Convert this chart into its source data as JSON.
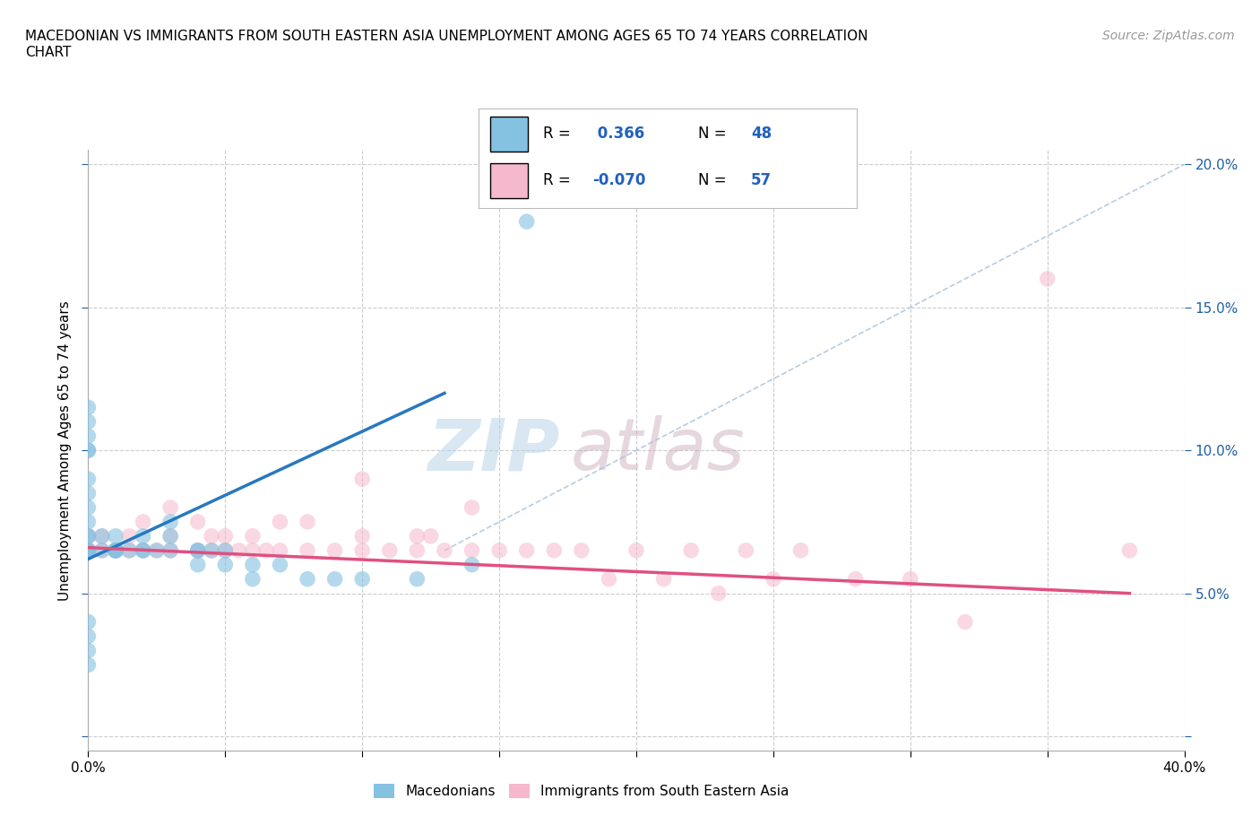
{
  "title_line1": "MACEDONIAN VS IMMIGRANTS FROM SOUTH EASTERN ASIA UNEMPLOYMENT AMONG AGES 65 TO 74 YEARS CORRELATION",
  "title_line2": "CHART",
  "source": "Source: ZipAtlas.com",
  "ylabel": "Unemployment Among Ages 65 to 74 years",
  "xlim": [
    0.0,
    0.4
  ],
  "ylim": [
    -0.005,
    0.205
  ],
  "macedonian_color": "#85c1e0",
  "immigrant_color": "#f5b8cc",
  "macedonian_R": 0.366,
  "macedonian_N": 48,
  "immigrant_R": -0.07,
  "immigrant_N": 57,
  "macedonian_line_color": "#2878c0",
  "immigrant_line_color": "#e05080",
  "diagonal_line_color": "#a8bfd8",
  "watermark_zip": "ZIP",
  "watermark_atlas": "atlas",
  "macedonian_scatter_x": [
    0.0,
    0.0,
    0.0,
    0.0,
    0.0,
    0.0,
    0.0,
    0.0,
    0.0,
    0.0,
    0.0,
    0.0,
    0.0,
    0.0,
    0.005,
    0.005,
    0.01,
    0.01,
    0.01,
    0.01,
    0.01,
    0.015,
    0.02,
    0.02,
    0.02,
    0.025,
    0.03,
    0.03,
    0.03,
    0.04,
    0.04,
    0.04,
    0.045,
    0.05,
    0.05,
    0.06,
    0.06,
    0.07,
    0.08,
    0.09,
    0.1,
    0.12,
    0.14,
    0.0,
    0.0,
    0.0,
    0.0,
    0.16
  ],
  "macedonian_scatter_y": [
    0.065,
    0.065,
    0.065,
    0.07,
    0.07,
    0.075,
    0.08,
    0.085,
    0.09,
    0.1,
    0.1,
    0.105,
    0.11,
    0.115,
    0.065,
    0.07,
    0.065,
    0.065,
    0.065,
    0.065,
    0.07,
    0.065,
    0.065,
    0.065,
    0.07,
    0.065,
    0.065,
    0.07,
    0.075,
    0.06,
    0.065,
    0.065,
    0.065,
    0.06,
    0.065,
    0.055,
    0.06,
    0.06,
    0.055,
    0.055,
    0.055,
    0.055,
    0.06,
    0.04,
    0.035,
    0.03,
    0.025,
    0.18
  ],
  "immigrant_scatter_x": [
    0.0,
    0.0,
    0.0,
    0.005,
    0.005,
    0.01,
    0.01,
    0.015,
    0.015,
    0.02,
    0.02,
    0.025,
    0.03,
    0.03,
    0.03,
    0.04,
    0.04,
    0.045,
    0.045,
    0.05,
    0.05,
    0.055,
    0.06,
    0.06,
    0.065,
    0.07,
    0.07,
    0.08,
    0.08,
    0.09,
    0.1,
    0.1,
    0.1,
    0.11,
    0.12,
    0.12,
    0.125,
    0.13,
    0.14,
    0.14,
    0.15,
    0.16,
    0.17,
    0.18,
    0.19,
    0.2,
    0.21,
    0.22,
    0.23,
    0.24,
    0.25,
    0.26,
    0.28,
    0.3,
    0.32,
    0.35,
    0.38
  ],
  "immigrant_scatter_y": [
    0.065,
    0.07,
    0.065,
    0.065,
    0.07,
    0.065,
    0.065,
    0.065,
    0.07,
    0.065,
    0.075,
    0.065,
    0.065,
    0.07,
    0.08,
    0.065,
    0.075,
    0.065,
    0.07,
    0.065,
    0.07,
    0.065,
    0.065,
    0.07,
    0.065,
    0.065,
    0.075,
    0.065,
    0.075,
    0.065,
    0.065,
    0.07,
    0.09,
    0.065,
    0.065,
    0.07,
    0.07,
    0.065,
    0.065,
    0.08,
    0.065,
    0.065,
    0.065,
    0.065,
    0.055,
    0.065,
    0.055,
    0.065,
    0.05,
    0.065,
    0.055,
    0.065,
    0.055,
    0.055,
    0.04,
    0.16,
    0.065
  ],
  "mac_line_x": [
    0.0,
    0.13
  ],
  "mac_line_y": [
    0.062,
    0.12
  ],
  "imm_line_x": [
    0.0,
    0.38
  ],
  "imm_line_y": [
    0.066,
    0.05
  ],
  "diag_line_x": [
    0.13,
    0.4
  ],
  "diag_line_y": [
    0.065,
    0.2
  ]
}
